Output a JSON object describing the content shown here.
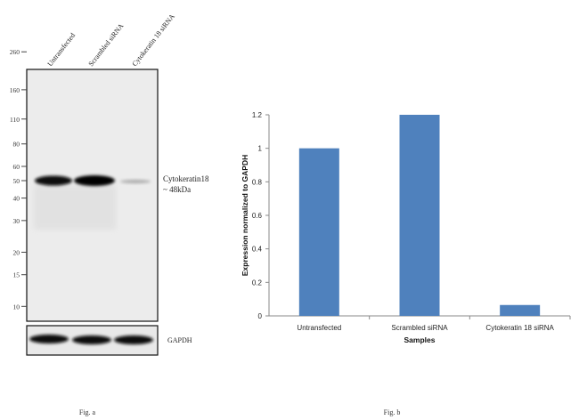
{
  "blot": {
    "lane_labels": [
      "Untransfected",
      "Scrambled siRNA",
      "Cytokeratin 18 siRNA"
    ],
    "markers": [
      260,
      160,
      110,
      80,
      60,
      50,
      40,
      30,
      20,
      15,
      10
    ],
    "band_label_line1": "Cytokeratin18",
    "band_label_line2": "~ 48kDa",
    "loading_label": "GAPDH",
    "caption": "Fig. a"
  },
  "chart_data": {
    "type": "bar",
    "categories": [
      "Untransfected",
      "Scrambled siRNA",
      "Cytokeratin 18 siRNA"
    ],
    "values": [
      1.0,
      1.2,
      0.065
    ],
    "title": "",
    "xlabel": "Samples",
    "ylabel": "Expression  normalized to GAPDH",
    "ylim": [
      0,
      1.2
    ],
    "yticks": [
      "0",
      "0.2",
      "0.4",
      "0.6",
      "0.8",
      "1",
      "1.2"
    ],
    "bar_color": "#4f81bd",
    "caption": "Fig. b"
  }
}
